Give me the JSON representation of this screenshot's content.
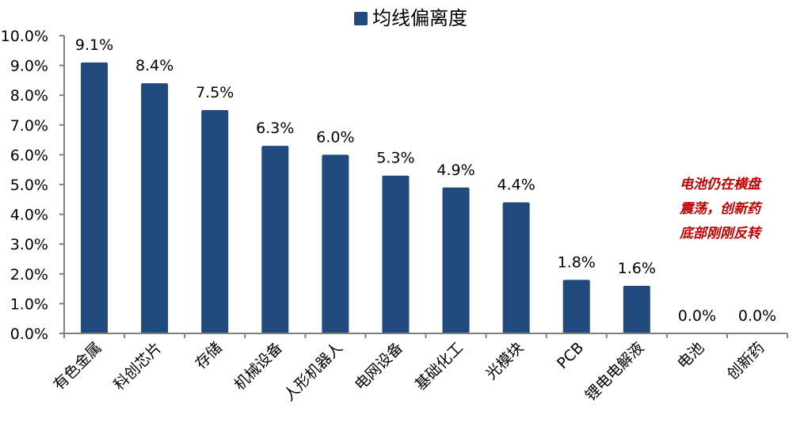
{
  "legend": {
    "label": "均线偏离度",
    "color": "#204a7e"
  },
  "annotation": {
    "lines": [
      "电池仍在横盘",
      "震荡，创新药",
      "底部刚刚反转"
    ],
    "color": "#c00000"
  },
  "chart_data": {
    "type": "bar",
    "title": "",
    "legend": [
      "均线偏离度"
    ],
    "legend_position": "top",
    "categories": [
      "有色金属",
      "科创芯片",
      "存储",
      "机械设备",
      "人形机器人",
      "电网设备",
      "基础化工",
      "光模块",
      "PCB",
      "锂电电解液",
      "电池",
      "创新药"
    ],
    "series": [
      {
        "name": "均线偏离度",
        "values": [
          9.1,
          8.4,
          7.5,
          6.3,
          6.0,
          5.3,
          4.9,
          4.4,
          1.8,
          1.6,
          0.0,
          0.0
        ],
        "color": "#204a7e"
      }
    ],
    "data_labels": [
      "9.1%",
      "8.4%",
      "7.5%",
      "6.3%",
      "6.0%",
      "5.3%",
      "4.9%",
      "4.4%",
      "1.8%",
      "1.6%",
      "0.0%",
      "0.0%"
    ],
    "xlabel": "",
    "ylabel": "",
    "ylim": [
      0,
      10
    ],
    "yticks": [
      "0.0%",
      "1.0%",
      "2.0%",
      "3.0%",
      "4.0%",
      "5.0%",
      "6.0%",
      "7.0%",
      "8.0%",
      "9.0%",
      "10.0%"
    ],
    "grid": false,
    "annotations": [
      "电池仍在横盘震荡，创新药底部刚刚反转"
    ]
  }
}
